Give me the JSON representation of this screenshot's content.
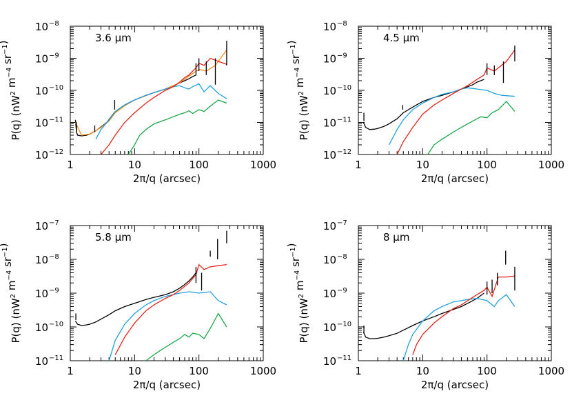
{
  "chart_data": [
    {
      "type": "line",
      "panel_label": "3.6 μm",
      "xlabel": "2π/q (arcsec)",
      "ylabel_pre": "P(q) (nW",
      "ylabel_sup1": "2",
      "ylabel_mid": " m",
      "ylabel_sup2": "−4",
      "ylabel_mid2": " sr",
      "ylabel_sup3": "−1",
      "ylabel_post": ")",
      "x_scale": "log",
      "y_scale": "log",
      "xlim": [
        1,
        1000
      ],
      "ylim": [
        1e-12,
        1e-08
      ],
      "x_ticks": [
        {
          "v": 1,
          "label": "1"
        },
        {
          "v": 10,
          "label": "10"
        },
        {
          "v": 100,
          "label": "100"
        },
        {
          "v": 1000,
          "label": "1000"
        }
      ],
      "y_ticks": [
        {
          "v": 1e-12,
          "base": "10",
          "exp": "−12"
        },
        {
          "v": 1e-11,
          "base": "10",
          "exp": "−11"
        },
        {
          "v": 1e-10,
          "base": "10",
          "exp": "−10"
        },
        {
          "v": 1e-09,
          "base": "10",
          "exp": "−9"
        },
        {
          "v": 1e-08,
          "base": "10",
          "exp": "−8"
        }
      ],
      "series": [
        {
          "color": "#000000",
          "x": [
            1.2,
            1.25,
            1.3,
            1.5,
            1.8,
            2.0,
            2.3,
            2.5,
            2.8,
            3.2,
            3.7,
            4.2,
            4.8,
            5.5,
            7,
            10,
            15,
            20,
            30,
            40,
            50,
            60,
            70,
            80,
            90
          ],
          "y": [
            1.2e-11,
            5e-12,
            4e-12,
            3.8e-12,
            4e-12,
            4.3e-12,
            5e-12,
            5.5e-12,
            6.5e-12,
            8e-12,
            1e-11,
            1.4e-11,
            2e-11,
            2.5e-11,
            3.5e-11,
            5e-11,
            7e-11,
            8.5e-11,
            1.1e-10,
            1.4e-10,
            1.7e-10,
            2e-10,
            2.3e-10,
            2.7e-10,
            3e-10
          ]
        },
        {
          "color": "#f28c1e",
          "x": [
            1.2,
            1.5,
            2,
            2.5,
            3,
            4,
            5,
            7,
            10,
            20,
            30,
            50,
            70,
            100,
            130,
            180,
            270
          ],
          "y": [
            1e-11,
            4e-12,
            4.3e-12,
            5.5e-12,
            7e-12,
            1.1e-11,
            2e-11,
            3.3e-11,
            5e-11,
            8.5e-11,
            1.1e-10,
            1.7e-10,
            2.8e-10,
            4.5e-10,
            4e-10,
            6e-10,
            1.8e-09
          ]
        },
        {
          "color": "#1fa0dc",
          "x": [
            2.5,
            3,
            4,
            5,
            7,
            10,
            15,
            20,
            30,
            40,
            50,
            60,
            70,
            80,
            100,
            120,
            150,
            200,
            270
          ],
          "y": [
            3e-12,
            6e-12,
            1.2e-11,
            2.2e-11,
            3.5e-11,
            5e-11,
            7e-11,
            8.5e-11,
            1.1e-10,
            1.3e-10,
            1.4e-10,
            1.2e-10,
            1.1e-10,
            1.3e-10,
            1.6e-10,
            9e-11,
            1.4e-10,
            8e-11,
            5.5e-11
          ]
        },
        {
          "color": "#e2231a",
          "x": [
            3,
            4,
            5,
            7,
            10,
            15,
            20,
            30,
            40,
            50,
            60,
            70,
            80,
            90,
            100,
            120,
            150,
            200,
            270
          ],
          "y": [
            1e-12,
            2e-12,
            4e-12,
            1e-11,
            2e-11,
            4e-11,
            6e-11,
            1e-10,
            1.3e-10,
            1.8e-10,
            2.5e-10,
            3e-10,
            4e-10,
            5e-10,
            7e-10,
            6e-10,
            1e-09,
            8e-10,
            6.5e-10
          ]
        },
        {
          "color": "#1aa64a",
          "x": [
            8,
            10,
            12,
            15,
            20,
            30,
            40,
            50,
            60,
            70,
            80,
            100,
            120,
            150,
            200,
            270
          ],
          "y": [
            1e-12,
            2e-12,
            4e-12,
            6e-12,
            9e-12,
            1.2e-11,
            1.5e-11,
            1.8e-11,
            2e-11,
            2.3e-11,
            1.9e-11,
            2.5e-11,
            2.2e-11,
            3.2e-11,
            5e-11,
            4e-11
          ]
        }
      ],
      "error_bars": [
        {
          "x": 1.25,
          "lo": 5e-12,
          "hi": 1e-11
        },
        {
          "x": 2.4,
          "lo": 5e-12,
          "hi": 8e-12
        },
        {
          "x": 4.9,
          "lo": 2.5e-11,
          "hi": 5e-11
        },
        {
          "x": 90,
          "lo": 3e-10,
          "hi": 7e-10
        },
        {
          "x": 100,
          "lo": 4e-10,
          "hi": 1e-09
        },
        {
          "x": 130,
          "lo": 3e-10,
          "hi": 8e-10
        },
        {
          "x": 180,
          "lo": 1.5e-10,
          "hi": 1e-09
        },
        {
          "x": 270,
          "lo": 6e-10,
          "hi": 3.5e-09
        }
      ]
    },
    {
      "type": "line",
      "panel_label": "4.5 μm",
      "xlabel": "2π/q (arcsec)",
      "ylabel_pre": "P(q) (nW",
      "ylabel_sup1": "2",
      "ylabel_mid": " m",
      "ylabel_sup2": "−4",
      "ylabel_mid2": " sr",
      "ylabel_sup3": "−1",
      "ylabel_post": ")",
      "x_scale": "log",
      "y_scale": "log",
      "xlim": [
        1,
        1000
      ],
      "ylim": [
        1e-12,
        1e-08
      ],
      "x_ticks": [
        {
          "v": 1,
          "label": "1"
        },
        {
          "v": 10,
          "label": "10"
        },
        {
          "v": 100,
          "label": "100"
        },
        {
          "v": 1000,
          "label": "1000"
        }
      ],
      "y_ticks": [
        {
          "v": 1e-12,
          "base": "10",
          "exp": "−12"
        },
        {
          "v": 1e-11,
          "base": "10",
          "exp": "−11"
        },
        {
          "v": 1e-10,
          "base": "10",
          "exp": "−10"
        },
        {
          "v": 1e-09,
          "base": "10",
          "exp": "−9"
        },
        {
          "v": 1e-08,
          "base": "10",
          "exp": "−8"
        }
      ],
      "series": [
        {
          "color": "#000000",
          "x": [
            1.2,
            1.3,
            1.5,
            1.8,
            2.0,
            2.5,
            3,
            4,
            5,
            7,
            10,
            15,
            20,
            30,
            40,
            50,
            60,
            70,
            80,
            90
          ],
          "y": [
            1e-11,
            7e-12,
            6e-12,
            6.2e-12,
            6.5e-12,
            7.5e-12,
            9e-12,
            1.3e-11,
            2e-11,
            3e-11,
            4.5e-11,
            6e-11,
            7e-11,
            9e-11,
            1.1e-10,
            1.3e-10,
            1.5e-10,
            1.8e-10,
            2e-10,
            2.2e-10
          ]
        },
        {
          "color": "#1fa0dc",
          "x": [
            3,
            4,
            5,
            7,
            10,
            15,
            20,
            30,
            40,
            50,
            70,
            100,
            130,
            170,
            270
          ],
          "y": [
            2e-12,
            6e-12,
            1.2e-11,
            2.5e-11,
            4e-11,
            6e-11,
            7.5e-11,
            9e-11,
            1.1e-10,
            1.2e-10,
            1.1e-10,
            1e-10,
            8e-11,
            7e-11,
            6.5e-11
          ]
        },
        {
          "color": "#e2231a",
          "x": [
            4,
            5,
            7,
            10,
            15,
            20,
            30,
            40,
            50,
            70,
            90,
            100,
            130,
            150,
            200,
            270
          ],
          "y": [
            1e-12,
            2.5e-12,
            7e-12,
            1.8e-11,
            3.5e-11,
            5e-11,
            8e-11,
            1.1e-10,
            1.4e-10,
            2.2e-10,
            3e-10,
            5e-10,
            4e-10,
            5e-10,
            8e-10,
            1.8e-09
          ]
        },
        {
          "color": "#1aa64a",
          "x": [
            12,
            15,
            20,
            30,
            40,
            50,
            60,
            70,
            80,
            100,
            120,
            150,
            200,
            270
          ],
          "y": [
            1e-12,
            2e-12,
            3e-12,
            5e-12,
            7e-12,
            9e-12,
            1.1e-11,
            1.3e-11,
            1.5e-11,
            1.4e-11,
            2e-11,
            2.5e-11,
            4.5e-11,
            2.2e-11
          ]
        }
      ],
      "error_bars": [
        {
          "x": 1.22,
          "lo": 1.1e-11,
          "hi": 2e-11
        },
        {
          "x": 4.9,
          "lo": 2.5e-11,
          "hi": 3.5e-11
        },
        {
          "x": 100,
          "lo": 3e-10,
          "hi": 7e-10
        },
        {
          "x": 130,
          "lo": 3e-10,
          "hi": 6e-10
        },
        {
          "x": 180,
          "lo": 1.7e-10,
          "hi": 8e-10
        },
        {
          "x": 270,
          "lo": 8e-10,
          "hi": 2.5e-09
        }
      ]
    },
    {
      "type": "line",
      "panel_label": "5.8 μm",
      "xlabel": "2π/q (arcsec)",
      "ylabel_pre": "P(q) (nW",
      "ylabel_sup1": "2",
      "ylabel_mid": " m",
      "ylabel_sup2": "−4",
      "ylabel_mid2": " sr",
      "ylabel_sup3": "−1",
      "ylabel_post": ")",
      "x_scale": "log",
      "y_scale": "log",
      "xlim": [
        1,
        1000
      ],
      "ylim": [
        1e-11,
        1e-07
      ],
      "x_ticks": [
        {
          "v": 1,
          "label": "1"
        },
        {
          "v": 10,
          "label": "10"
        },
        {
          "v": 100,
          "label": "100"
        },
        {
          "v": 1000,
          "label": "1000"
        }
      ],
      "y_ticks": [
        {
          "v": 1e-11,
          "base": "10",
          "exp": "−11"
        },
        {
          "v": 1e-10,
          "base": "10",
          "exp": "−10"
        },
        {
          "v": 1e-09,
          "base": "10",
          "exp": "−9"
        },
        {
          "v": 1e-08,
          "base": "10",
          "exp": "−8"
        },
        {
          "v": 1e-07,
          "base": "10",
          "exp": "−7"
        }
      ],
      "series": [
        {
          "color": "#000000",
          "x": [
            1.2,
            1.3,
            1.5,
            1.8,
            2.0,
            2.5,
            3,
            4,
            5,
            7,
            10,
            15,
            20,
            30,
            40,
            50,
            60,
            70,
            80,
            90
          ],
          "y": [
            1.5e-10,
            1.2e-10,
            1.1e-10,
            1.15e-10,
            1.2e-10,
            1.4e-10,
            1.7e-10,
            2.3e-10,
            3e-10,
            4e-10,
            5e-10,
            6.5e-10,
            7.5e-10,
            9e-10,
            1.1e-09,
            1.4e-09,
            1.8e-09,
            2.3e-09,
            3e-09,
            4e-09
          ]
        },
        {
          "color": "#1fa0dc",
          "x": [
            4,
            5,
            7,
            10,
            15,
            20,
            30,
            40,
            50,
            70,
            100,
            150,
            200,
            270
          ],
          "y": [
            1e-11,
            4e-11,
            1.2e-10,
            2.5e-10,
            4.5e-10,
            6e-10,
            8e-10,
            9e-10,
            1e-09,
            1.1e-09,
            1e-09,
            1.1e-09,
            6e-10,
            4.5e-10
          ]
        },
        {
          "color": "#e2231a",
          "x": [
            5,
            7,
            10,
            15,
            20,
            30,
            40,
            50,
            70,
            90,
            100,
            120,
            150,
            200,
            270
          ],
          "y": [
            1.5e-11,
            5e-11,
            1.3e-10,
            3e-10,
            4.5e-10,
            7e-10,
            9e-10,
            1.2e-09,
            2e-09,
            3.5e-09,
            7e-09,
            5e-09,
            6e-09,
            6.5e-09,
            7e-09
          ]
        },
        {
          "color": "#1aa64a",
          "x": [
            15,
            20,
            25,
            30,
            40,
            50,
            60,
            70,
            80,
            100,
            120,
            150,
            200,
            270
          ],
          "y": [
            1e-11,
            1.5e-11,
            2e-11,
            2.5e-11,
            3.5e-11,
            4.5e-11,
            6e-11,
            5e-11,
            6.5e-11,
            6e-11,
            4.5e-11,
            9e-11,
            2.5e-10,
            1e-10
          ]
        }
      ],
      "error_bars": [
        {
          "x": 1.22,
          "lo": 1.6e-10,
          "hi": 2.5e-10
        },
        {
          "x": 90,
          "lo": 2e-09,
          "hi": 6e-09
        },
        {
          "x": 110,
          "lo": 1.2e-09,
          "hi": 4e-09
        },
        {
          "x": 150,
          "lo": 1.2e-08,
          "hi": 1.8e-08
        },
        {
          "x": 195,
          "lo": 1e-08,
          "hi": 4e-08
        },
        {
          "x": 270,
          "lo": 3e-08,
          "hi": 7e-08
        }
      ]
    },
    {
      "type": "line",
      "panel_label": "8 μm",
      "xlabel": "2π/q (arcsec)",
      "ylabel_pre": "P(q) (nW",
      "ylabel_sup1": "2",
      "ylabel_mid": " m",
      "ylabel_sup2": "−4",
      "ylabel_mid2": " sr",
      "ylabel_sup3": "−1",
      "ylabel_post": ")",
      "x_scale": "log",
      "y_scale": "log",
      "xlim": [
        1,
        1000
      ],
      "ylim": [
        1e-11,
        1e-07
      ],
      "x_ticks": [
        {
          "v": 1,
          "label": "1"
        },
        {
          "v": 10,
          "label": "10"
        },
        {
          "v": 100,
          "label": "100"
        },
        {
          "v": 1000,
          "label": "1000"
        }
      ],
      "y_ticks": [
        {
          "v": 1e-11,
          "base": "10",
          "exp": "−11"
        },
        {
          "v": 1e-10,
          "base": "10",
          "exp": "−10"
        },
        {
          "v": 1e-09,
          "base": "10",
          "exp": "−9"
        },
        {
          "v": 1e-08,
          "base": "10",
          "exp": "−8"
        },
        {
          "v": 1e-07,
          "base": "10",
          "exp": "−7"
        }
      ],
      "series": [
        {
          "color": "#000000",
          "x": [
            1.2,
            1.3,
            1.5,
            1.8,
            2.0,
            2.5,
            3,
            4,
            5,
            7,
            10,
            15,
            20,
            30,
            40,
            50,
            60,
            70,
            80,
            90
          ],
          "y": [
            7e-11,
            5e-11,
            4.5e-11,
            4.5e-11,
            4.6e-11,
            5e-11,
            5.5e-11,
            6.5e-11,
            8e-11,
            1.1e-10,
            1.5e-10,
            2e-10,
            2.5e-10,
            3.3e-10,
            4e-10,
            5e-10,
            6e-10,
            7e-10,
            8.5e-10,
            1e-09
          ]
        },
        {
          "color": "#1fa0dc",
          "x": [
            5,
            6,
            7,
            10,
            15,
            20,
            30,
            40,
            50,
            70,
            100,
            130,
            150,
            200,
            270
          ],
          "y": [
            1e-11,
            3e-11,
            6e-11,
            1.5e-10,
            3e-10,
            4e-10,
            5.5e-10,
            6e-10,
            6.5e-10,
            7e-10,
            6e-10,
            4e-10,
            6e-10,
            9e-10,
            4e-10
          ]
        },
        {
          "color": "#e2231a",
          "x": [
            7,
            8,
            10,
            15,
            20,
            30,
            40,
            50,
            70,
            90,
            100,
            120,
            150,
            200,
            270
          ],
          "y": [
            1.5e-11,
            3e-11,
            6e-11,
            1.3e-10,
            2e-10,
            3.5e-10,
            4.5e-10,
            6e-10,
            9e-10,
            1.2e-09,
            1.5e-09,
            8e-10,
            3e-09,
            3e-09,
            3.2e-09
          ]
        }
      ],
      "error_bars": [
        {
          "x": 1.22,
          "lo": 6.5e-11,
          "hi": 1.1e-10
        },
        {
          "x": 100,
          "lo": 9e-10,
          "hi": 2.2e-09
        },
        {
          "x": 120,
          "lo": 1e-09,
          "hi": 2.5e-09
        },
        {
          "x": 145,
          "lo": 1.7e-09,
          "hi": 4e-09
        },
        {
          "x": 195,
          "lo": 7e-09,
          "hi": 1.8e-08
        },
        {
          "x": 270,
          "lo": 1.2e-09,
          "hi": 6e-09
        }
      ]
    }
  ]
}
